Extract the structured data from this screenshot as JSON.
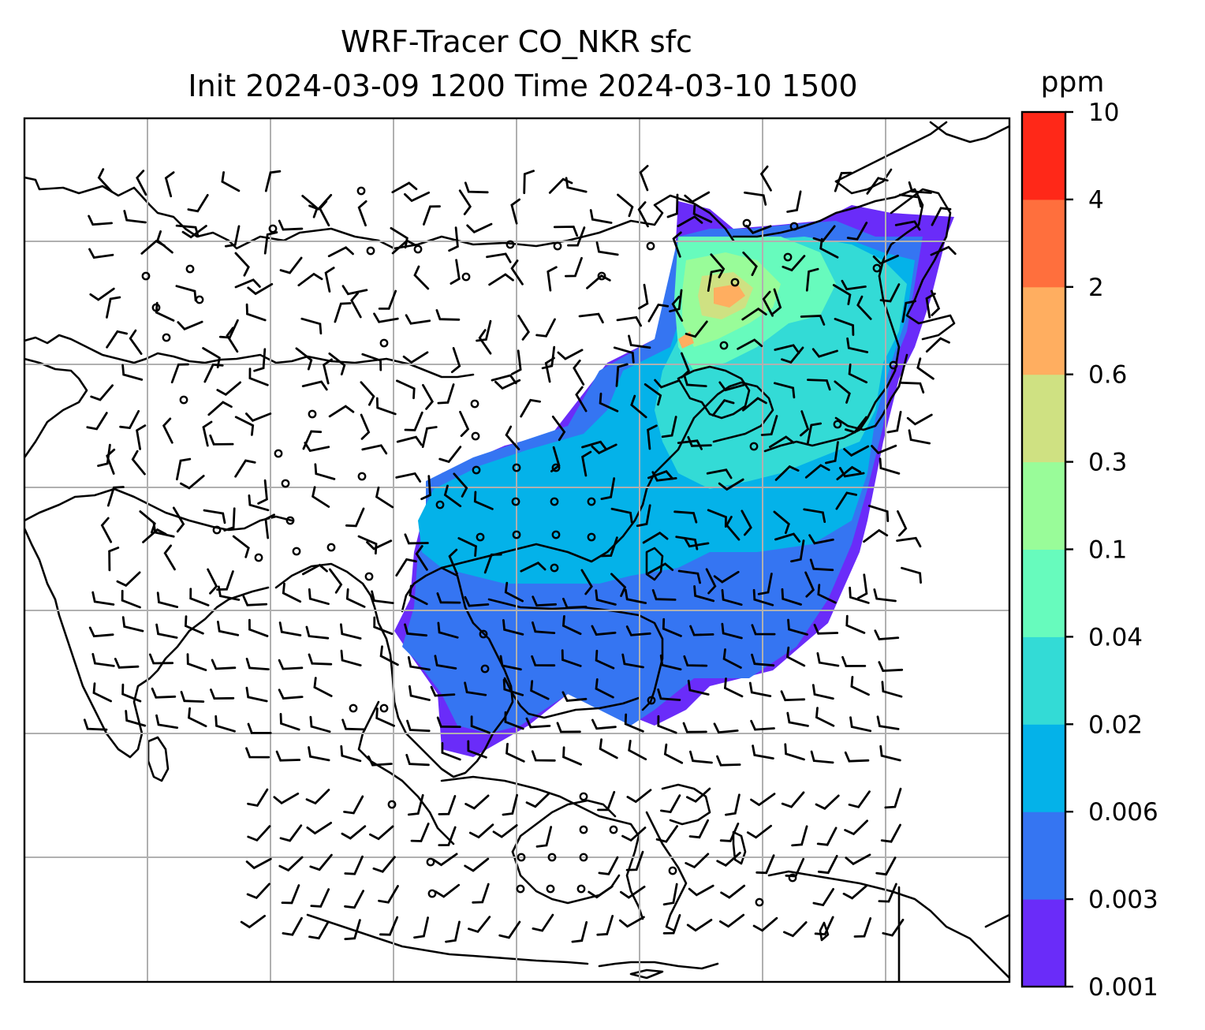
{
  "title": {
    "line1": "WRF-Tracer CO_NKR sfc",
    "line2": "Init 2024-03-09 1200 Time 2024-03-10 1500"
  },
  "colorbar": {
    "unit": "ppm",
    "levels": [
      "0.001",
      "0.003",
      "0.006",
      "0.02",
      "0.04",
      "0.1",
      "0.3",
      "0.6",
      "2",
      "4",
      "10"
    ],
    "colors": [
      "#6a2cf9",
      "#3575f2",
      "#04b2e9",
      "#33dbd6",
      "#67fbbd",
      "#99fc99",
      "#cfe182",
      "#ffae60",
      "#ff6f3d",
      "#ff2818"
    ]
  },
  "map": {
    "variable": "CO_NKR",
    "level": "sfc",
    "init_time": "2024-03-09 1200",
    "valid_time": "2024-03-10 1500",
    "plume_regions": {
      "concentration_classes_ppm": [
        {
          "range": "0.001-0.003",
          "color": "#6a2cf9",
          "where": "southern fringe over Indochina and South China Sea edge"
        },
        {
          "range": "0.003-0.006",
          "color": "#3575f2",
          "where": "broad area over southern China and northern South China Sea"
        },
        {
          "range": "0.006-0.02",
          "color": "#04b2e9",
          "where": "central China and Korea"
        },
        {
          "range": "0.02-0.04",
          "color": "#33dbd6",
          "where": "northeast China, Korea, Yellow Sea"
        },
        {
          "range": "0.04-0.1",
          "color": "#67fbbd",
          "where": "northeast China"
        },
        {
          "range": "0.1-0.3",
          "color": "#99fc99",
          "where": "northeast China near source"
        },
        {
          "range": "0.3-0.6",
          "color": "#cfe182",
          "where": "source vicinity"
        },
        {
          "range": "0.6-2",
          "color": "#ffae60",
          "where": "small patches near source"
        }
      ]
    },
    "wind_barbs": "surface wind barbs and calm-wind circles over Asia domain"
  }
}
